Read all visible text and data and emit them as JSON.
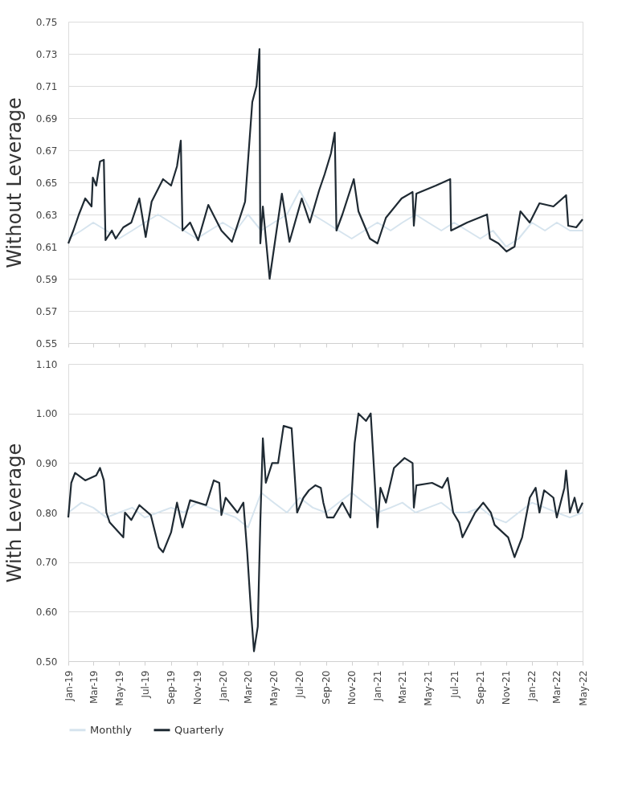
{
  "chart_data": [
    {
      "type": "line",
      "ylabel": "Without Leverage",
      "xlim": [
        "2019-01-01",
        "2022-05-01"
      ],
      "xticks": [
        {
          "value": "2019-01",
          "label": null
        },
        {
          "value": "2019-03",
          "label": null
        },
        {
          "value": "2019-05",
          "label": null
        },
        {
          "value": "2019-07",
          "label": null
        },
        {
          "value": "2019-09",
          "label": null
        },
        {
          "value": "2019-11",
          "label": null
        },
        {
          "value": "2020-01",
          "label": null
        },
        {
          "value": "2020-03",
          "label": null
        },
        {
          "value": "2020-05",
          "label": null
        },
        {
          "value": "2020-07",
          "label": null
        },
        {
          "value": "2020-09",
          "label": null
        },
        {
          "value": "2020-11",
          "label": null
        },
        {
          "value": "2021-01",
          "label": null
        },
        {
          "value": "2021-03",
          "label": null
        },
        {
          "value": "2021-05",
          "label": null
        },
        {
          "value": "2021-07",
          "label": null
        },
        {
          "value": "2021-09",
          "label": null
        },
        {
          "value": "2021-11",
          "label": null
        },
        {
          "value": "2022-01",
          "label": null
        },
        {
          "value": "2022-03",
          "label": null
        },
        {
          "value": "2022-05",
          "label": null
        }
      ],
      "ylim": [
        0.55,
        0.75
      ],
      "yticks": [
        0.55,
        0.57,
        0.59,
        0.61,
        0.63,
        0.65,
        0.67,
        0.69,
        0.71,
        0.73,
        0.75
      ],
      "grid": "y",
      "legend": "bottom",
      "tick_labels": "y",
      "line_style": "solid",
      "marker": "none",
      "series": [
        {
          "name": "Monthly",
          "color": "#d6e4ee",
          "x": [
            "2019-01-01",
            "2019-02-01",
            "2019-03-01",
            "2019-04-01",
            "2019-05-01",
            "2019-06-01",
            "2019-07-01",
            "2019-08-01",
            "2019-09-01",
            "2019-10-01",
            "2019-11-01",
            "2019-12-01",
            "2020-01-01",
            "2020-02-01",
            "2020-03-01",
            "2020-04-01",
            "2020-05-01",
            "2020-06-01",
            "2020-07-01",
            "2020-08-01",
            "2020-09-01",
            "2020-10-01",
            "2020-11-01",
            "2020-12-01",
            "2021-01-01",
            "2021-02-01",
            "2021-03-01",
            "2021-04-01",
            "2021-05-01",
            "2021-06-01",
            "2021-07-01",
            "2021-08-01",
            "2021-09-01",
            "2021-10-01",
            "2021-11-01",
            "2021-12-01",
            "2022-01-01",
            "2022-02-01",
            "2022-03-01",
            "2022-04-01",
            "2022-05-01"
          ],
          "values": [
            0.615,
            0.62,
            0.625,
            0.62,
            0.615,
            0.62,
            0.625,
            0.63,
            0.625,
            0.62,
            0.615,
            0.62,
            0.625,
            0.62,
            0.63,
            0.62,
            0.625,
            0.63,
            0.645,
            0.63,
            0.625,
            0.62,
            0.615,
            0.62,
            0.625,
            0.62,
            0.625,
            0.63,
            0.625,
            0.62,
            0.625,
            0.62,
            0.615,
            0.62,
            0.61,
            0.615,
            0.625,
            0.62,
            0.625,
            0.62,
            0.62
          ]
        },
        {
          "name": "Quarterly",
          "color": "#1f2a33",
          "x": [
            "2019-01-01",
            "2019-01-13",
            "2019-01-26",
            "2019-02-10",
            "2019-02-25",
            "2019-02-28",
            "2019-03-08",
            "2019-03-17",
            "2019-03-26",
            "2019-03-30",
            "2019-04-14",
            "2019-04-23",
            "2019-05-11",
            "2019-05-30",
            "2019-06-18",
            "2019-07-03",
            "2019-07-17",
            "2019-08-13",
            "2019-09-01",
            "2019-09-15",
            "2019-09-24",
            "2019-09-28",
            "2019-10-16",
            "2019-11-04",
            "2019-11-28",
            "2019-12-29",
            "2020-01-23",
            "2020-02-23",
            "2020-03-11",
            "2020-03-21",
            "2020-03-28",
            "2020-03-30",
            "2020-04-05",
            "2020-04-21",
            "2020-05-20",
            "2020-06-07",
            "2020-07-06",
            "2020-07-25",
            "2020-08-16",
            "2020-08-29",
            "2020-09-13",
            "2020-09-22",
            "2020-09-26",
            "2020-10-10",
            "2020-11-06",
            "2020-11-17",
            "2020-12-14",
            "2021-01-01",
            "2021-01-21",
            "2021-02-27",
            "2021-03-25",
            "2021-03-28",
            "2021-04-03",
            "2021-05-19",
            "2021-06-22",
            "2021-06-24",
            "2021-08-01",
            "2021-09-17",
            "2021-09-24",
            "2021-10-14",
            "2021-11-02",
            "2021-11-21",
            "2021-12-05",
            "2021-12-27",
            "2022-01-19",
            "2022-02-21",
            "2022-03-23",
            "2022-03-28",
            "2022-04-16",
            "2022-05-01"
          ],
          "values": [
            0.612,
            0.62,
            0.63,
            0.64,
            0.635,
            0.653,
            0.648,
            0.663,
            0.664,
            0.614,
            0.62,
            0.615,
            0.622,
            0.625,
            0.64,
            0.616,
            0.638,
            0.652,
            0.648,
            0.66,
            0.676,
            0.62,
            0.625,
            0.614,
            0.636,
            0.62,
            0.613,
            0.638,
            0.7,
            0.71,
            0.733,
            0.612,
            0.635,
            0.59,
            0.643,
            0.613,
            0.64,
            0.625,
            0.645,
            0.655,
            0.668,
            0.681,
            0.62,
            0.63,
            0.652,
            0.632,
            0.615,
            0.612,
            0.628,
            0.64,
            0.644,
            0.623,
            0.643,
            0.648,
            0.652,
            0.62,
            0.625,
            0.63,
            0.615,
            0.612,
            0.607,
            0.61,
            0.632,
            0.625,
            0.637,
            0.635,
            0.642,
            0.623,
            0.622,
            0.627
          ]
        }
      ]
    },
    {
      "type": "line",
      "ylabel": "With Leverage",
      "xlim": [
        "2019-01-01",
        "2022-05-01"
      ],
      "xticks": [
        {
          "value": "2019-01",
          "label": "Jan-19"
        },
        {
          "value": "2019-03",
          "label": "Mar-19"
        },
        {
          "value": "2019-05",
          "label": "May-19"
        },
        {
          "value": "2019-07",
          "label": "Jul-19"
        },
        {
          "value": "2019-09",
          "label": "Sep-19"
        },
        {
          "value": "2019-11",
          "label": "Nov-19"
        },
        {
          "value": "2020-01",
          "label": "Jan-20"
        },
        {
          "value": "2020-03",
          "label": "Mar-20"
        },
        {
          "value": "2020-05",
          "label": "May-20"
        },
        {
          "value": "2020-07",
          "label": "Jul-20"
        },
        {
          "value": "2020-09",
          "label": "Sep-20"
        },
        {
          "value": "2020-11",
          "label": "Nov-20"
        },
        {
          "value": "2021-01",
          "label": "Jan-21"
        },
        {
          "value": "2021-03",
          "label": "Mar-21"
        },
        {
          "value": "2021-05",
          "label": "May-21"
        },
        {
          "value": "2021-07",
          "label": "Jul-21"
        },
        {
          "value": "2021-09",
          "label": "Sep-21"
        },
        {
          "value": "2021-11",
          "label": "Nov-21"
        },
        {
          "value": "2022-01",
          "label": "Jan-22"
        },
        {
          "value": "2022-03",
          "label": "Mar-22"
        },
        {
          "value": "2022-05",
          "label": "May-22"
        }
      ],
      "ylim": [
        0.5,
        1.1
      ],
      "yticks": [
        {
          "value": 0.5,
          "label": "0.50"
        },
        {
          "value": 0.6,
          "label": "0.60"
        },
        {
          "value": 0.7,
          "label": "0.70"
        },
        {
          "value": 0.8,
          "label": "0.80"
        },
        {
          "value": 0.9,
          "label": "0.90"
        },
        {
          "value": 1.0,
          "label": "1.00"
        },
        {
          "value": 1.1,
          "label": "1.10"
        }
      ],
      "grid": "y",
      "legend": "bottom",
      "line_style": "solid",
      "marker": "none",
      "series": [
        {
          "name": "Monthly",
          "color": "#d6e4ee",
          "x": [
            "2019-01-01",
            "2019-02-01",
            "2019-03-01",
            "2019-04-01",
            "2019-05-01",
            "2019-06-01",
            "2019-07-01",
            "2019-08-01",
            "2019-09-01",
            "2019-10-01",
            "2019-11-01",
            "2019-12-01",
            "2020-01-01",
            "2020-02-01",
            "2020-03-01",
            "2020-04-01",
            "2020-05-01",
            "2020-06-01",
            "2020-07-01",
            "2020-08-01",
            "2020-09-01",
            "2020-10-01",
            "2020-11-01",
            "2020-12-01",
            "2021-01-01",
            "2021-02-01",
            "2021-03-01",
            "2021-04-01",
            "2021-05-01",
            "2021-06-01",
            "2021-07-01",
            "2021-08-01",
            "2021-09-01",
            "2021-10-01",
            "2021-11-01",
            "2021-12-01",
            "2022-01-01",
            "2022-02-01",
            "2022-03-01",
            "2022-04-01",
            "2022-05-01"
          ],
          "values": [
            0.8,
            0.82,
            0.81,
            0.79,
            0.8,
            0.81,
            0.79,
            0.8,
            0.81,
            0.8,
            0.82,
            0.81,
            0.8,
            0.79,
            0.77,
            0.84,
            0.82,
            0.8,
            0.83,
            0.81,
            0.8,
            0.82,
            0.84,
            0.82,
            0.8,
            0.81,
            0.82,
            0.8,
            0.81,
            0.82,
            0.8,
            0.8,
            0.81,
            0.79,
            0.78,
            0.8,
            0.82,
            0.81,
            0.8,
            0.79,
            0.8
          ]
        },
        {
          "name": "Quarterly",
          "color": "#1f2a33",
          "x": [
            "2019-01-01",
            "2019-01-08",
            "2019-01-17",
            "2019-02-10",
            "2019-03-08",
            "2019-03-17",
            "2019-03-26",
            "2019-04-01",
            "2019-04-09",
            "2019-05-11",
            "2019-05-15",
            "2019-05-30",
            "2019-06-18",
            "2019-07-15",
            "2019-08-03",
            "2019-08-13",
            "2019-09-01",
            "2019-09-15",
            "2019-09-28",
            "2019-10-16",
            "2019-11-23",
            "2019-12-11",
            "2019-12-24",
            "2019-12-29",
            "2020-01-08",
            "2020-02-05",
            "2020-02-19",
            "2020-02-28",
            "2020-03-08",
            "2020-03-15",
            "2020-03-24",
            "2020-03-30",
            "2020-04-05",
            "2020-04-12",
            "2020-04-27",
            "2020-05-11",
            "2020-05-24",
            "2020-06-12",
            "2020-06-25",
            "2020-07-10",
            "2020-07-23",
            "2020-08-07",
            "2020-08-20",
            "2020-08-26",
            "2020-09-04",
            "2020-09-19",
            "2020-09-26",
            "2020-10-10",
            "2020-10-29",
            "2020-11-08",
            "2020-11-17",
            "2020-12-05",
            "2020-12-16",
            "2021-01-01",
            "2021-01-08",
            "2021-01-21",
            "2021-02-09",
            "2021-03-06",
            "2021-03-25",
            "2021-03-28",
            "2021-04-03",
            "2021-05-10",
            "2021-06-03",
            "2021-06-16",
            "2021-06-29",
            "2021-07-13",
            "2021-07-21",
            "2021-08-20",
            "2021-09-08",
            "2021-09-26",
            "2021-10-05",
            "2021-10-24",
            "2021-11-06",
            "2021-11-21",
            "2021-12-09",
            "2021-12-27",
            "2022-01-10",
            "2022-01-19",
            "2022-01-30",
            "2022-02-21",
            "2022-03-01",
            "2022-03-19",
            "2022-03-23",
            "2022-04-01",
            "2022-04-12",
            "2022-04-20",
            "2022-05-01"
          ],
          "values": [
            0.79,
            0.86,
            0.88,
            0.865,
            0.875,
            0.89,
            0.865,
            0.8,
            0.78,
            0.75,
            0.8,
            0.785,
            0.815,
            0.795,
            0.73,
            0.72,
            0.76,
            0.82,
            0.77,
            0.825,
            0.815,
            0.865,
            0.86,
            0.795,
            0.83,
            0.8,
            0.82,
            0.72,
            0.6,
            0.52,
            0.57,
            0.78,
            0.95,
            0.86,
            0.9,
            0.9,
            0.975,
            0.97,
            0.8,
            0.83,
            0.845,
            0.855,
            0.85,
            0.82,
            0.79,
            0.79,
            0.8,
            0.82,
            0.79,
            0.94,
            1.0,
            0.985,
            1.0,
            0.77,
            0.85,
            0.82,
            0.89,
            0.91,
            0.9,
            0.81,
            0.855,
            0.86,
            0.85,
            0.87,
            0.8,
            0.78,
            0.75,
            0.8,
            0.82,
            0.8,
            0.775,
            0.76,
            0.75,
            0.71,
            0.75,
            0.83,
            0.85,
            0.8,
            0.845,
            0.83,
            0.79,
            0.85,
            0.885,
            0.8,
            0.83,
            0.8,
            0.82
          ]
        }
      ]
    }
  ]
}
